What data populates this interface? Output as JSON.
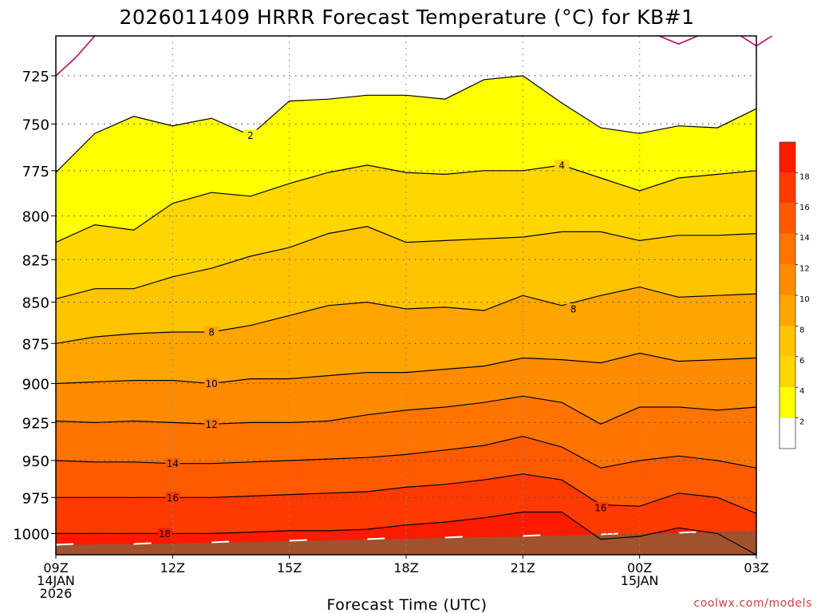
{
  "chart_data": {
    "type": "area",
    "title": "2026011409 HRRR Forecast Temperature (°C) for KB#1",
    "xlabel": "Forecast Time (UTC)",
    "ylabel": "",
    "credit": "coolwx.com/models",
    "x": [
      "09Z",
      "10Z",
      "11Z",
      "12Z",
      "13Z",
      "14Z",
      "15Z",
      "16Z",
      "17Z",
      "18Z",
      "19Z",
      "20Z",
      "21Z",
      "22Z",
      "23Z",
      "00Z",
      "01Z",
      "02Z",
      "03Z"
    ],
    "x_tick_labels": [
      {
        "x": "09Z",
        "lines": [
          "09Z",
          "14JAN",
          "2026"
        ]
      },
      {
        "x": "12Z",
        "lines": [
          "12Z"
        ]
      },
      {
        "x": "15Z",
        "lines": [
          "15Z"
        ]
      },
      {
        "x": "18Z",
        "lines": [
          "18Z"
        ]
      },
      {
        "x": "21Z",
        "lines": [
          "21Z"
        ]
      },
      {
        "x": "00Z",
        "lines": [
          "00Z",
          "15JAN"
        ]
      },
      {
        "x": "03Z",
        "lines": [
          "03Z"
        ]
      }
    ],
    "y_ticks": [
      725,
      750,
      775,
      800,
      825,
      850,
      875,
      900,
      925,
      950,
      975,
      1000
    ],
    "ylim": [
      1015,
      705
    ],
    "y_scale": "reversed pressure (hPa)",
    "grid": true,
    "colorbar": {
      "placement": "right",
      "labels": [
        "2",
        "4",
        "6",
        "8",
        "10",
        "12",
        "14",
        "16",
        "18"
      ],
      "bins": [
        {
          "max": 2,
          "color": "#ffffff"
        },
        {
          "max": 4,
          "color": "#ffff00"
        },
        {
          "max": 6,
          "color": "#ffd700"
        },
        {
          "max": 8,
          "color": "#ffc400"
        },
        {
          "max": 10,
          "color": "#ffa500"
        },
        {
          "max": 12,
          "color": "#ff8c00"
        },
        {
          "max": 14,
          "color": "#ff7300"
        },
        {
          "max": 16,
          "color": "#ff5a00"
        },
        {
          "max": 18,
          "color": "#ff3a00"
        },
        {
          "max": 20,
          "color": "#ff1a00"
        }
      ]
    },
    "ground_color": "#a0522d",
    "zero_contour_color": "#c8006e",
    "isotherms": [
      {
        "value": 0,
        "label": "",
        "color": "#c8006e",
        "segments": [
          [
            [
              0,
              725
            ],
            [
              0.5,
              716
            ],
            [
              1.0,
              705
            ]
          ],
          [
            [
              15.5,
              705
            ],
            [
              16.0,
              709
            ],
            [
              16.5,
              705
            ]
          ],
          [
            [
              17.6,
              705
            ],
            [
              18.0,
              710
            ],
            [
              18.4,
              705
            ]
          ]
        ]
      },
      {
        "value": 2,
        "label": "2",
        "label_at": 5,
        "points": [
          776,
          755,
          746,
          751,
          747,
          756,
          738,
          737,
          735,
          735,
          737,
          727,
          725,
          739,
          752,
          755,
          751,
          752,
          742
        ]
      },
      {
        "value": 4,
        "label": "4",
        "label_at": 13,
        "points": [
          815,
          805,
          808,
          793,
          787,
          789,
          782,
          776,
          772,
          776,
          777,
          775,
          775,
          772,
          779,
          786,
          779,
          777,
          775
        ]
      },
      {
        "value": 6,
        "label": "",
        "points": [
          848,
          842,
          842,
          835,
          830,
          823,
          818,
          810,
          806,
          815,
          814,
          813,
          812,
          809,
          809,
          814,
          811,
          811,
          810
        ]
      },
      {
        "value": 8,
        "label": "8",
        "label_at": 4,
        "points": [
          875,
          871,
          869,
          868,
          868,
          864,
          858,
          852,
          850,
          854,
          853,
          855,
          846,
          852,
          846,
          841,
          847,
          846,
          845
        ]
      },
      {
        "value": 10,
        "label": "10",
        "label_at": 4,
        "points": [
          900,
          899,
          898,
          898,
          900,
          897,
          897,
          895,
          893,
          893,
          891,
          889,
          884,
          885,
          887,
          881,
          886,
          885,
          884
        ]
      },
      {
        "value": 12,
        "label": "12",
        "label_at": 4,
        "points": [
          924,
          925,
          924,
          925,
          926,
          925,
          925,
          924,
          920,
          917,
          915,
          912,
          908,
          912,
          926,
          915,
          915,
          917,
          915
        ]
      },
      {
        "value": 14,
        "label": "14",
        "label_at": 3,
        "points": [
          950,
          951,
          951,
          952,
          952,
          951,
          950,
          949,
          948,
          946,
          943,
          940,
          934,
          941,
          955,
          950,
          947,
          950,
          955
        ]
      },
      {
        "value": 16,
        "label": "16",
        "label_at": 3,
        "points": [
          975,
          975,
          975,
          975,
          975,
          974,
          973,
          972,
          971,
          968,
          966,
          963,
          959,
          963,
          980,
          981,
          972,
          975,
          986
        ]
      },
      {
        "value": 18,
        "label": "18",
        "label_at": 2.8,
        "points": [
          1000,
          1000,
          1000,
          1000,
          1000,
          999,
          998,
          998,
          997,
          994,
          992,
          989,
          985,
          985,
          1004,
          1002,
          996,
          1000,
          1015
        ]
      }
    ],
    "inline_labels": [
      {
        "text": "16",
        "x": 14.0,
        "y": 982
      },
      {
        "text": "8",
        "x": 13.3,
        "y": 854
      }
    ]
  }
}
